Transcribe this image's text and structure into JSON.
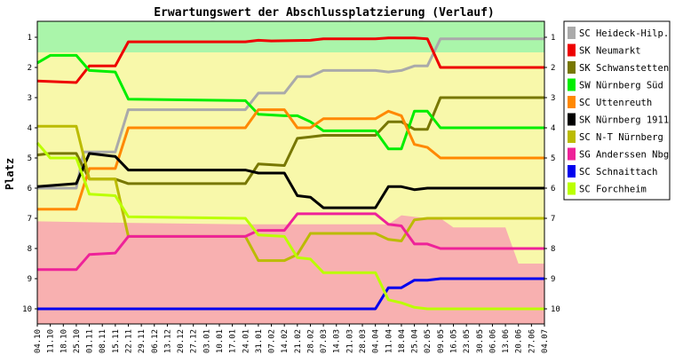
{
  "chart_data": {
    "type": "line",
    "title": "Erwartungswert der Abschlussplatzierung (Verlauf)",
    "ylabel": "Platz",
    "xlabel": "",
    "ylim": [
      1,
      10
    ],
    "y_inverted": true,
    "y_ticks": [
      1,
      2,
      3,
      4,
      5,
      6,
      7,
      8,
      9,
      10
    ],
    "x_tick_labels": [
      "04.10",
      "11.10",
      "18.10",
      "25.10",
      "01.11",
      "08.11",
      "15.11",
      "22.11",
      "29.11",
      "06.12",
      "13.12",
      "20.12",
      "27.12",
      "03.01",
      "10.01",
      "17.01",
      "24.01",
      "31.01",
      "07.02",
      "14.02",
      "21.02",
      "28.02",
      "07.03",
      "14.03",
      "21.03",
      "28.03",
      "04.04",
      "11.04",
      "18.04",
      "25.04",
      "02.05",
      "09.05",
      "16.05",
      "23.05",
      "30.05",
      "06.06",
      "13.06",
      "20.06",
      "27.06",
      "04.07"
    ],
    "x_start": "2009-10-04",
    "x_end": "2010-07-04",
    "grid": false,
    "legend_position": "right",
    "background_colors": {
      "top_zone": "#aaf5aa",
      "middle_zone": "#f8f8aa",
      "bottom_zone": "#f8b0b0"
    },
    "background_zones": {
      "x": [
        "2009-10-04",
        "2009-11-22",
        "2010-01-24",
        "2010-04-11",
        "2010-04-18",
        "2010-05-02",
        "2010-05-09",
        "2010-05-16",
        "2010-06-13",
        "2010-06-20",
        "2010-07-04"
      ],
      "top_zone_lower": [
        1.5,
        1.5,
        1.5,
        1.5,
        1.5,
        1.5,
        1.5,
        1.5,
        1.5,
        1.5,
        1.5
      ],
      "bottom_zone_upper": [
        7.1,
        7.15,
        7.2,
        7.2,
        6.9,
        7.0,
        7.0,
        7.3,
        7.3,
        8.5,
        8.5
      ]
    },
    "series": [
      {
        "name": "SC Heideck-Hilp.",
        "color": "#aaaaaa",
        "x": [
          "2009-10-04",
          "2009-10-25",
          "2009-10-29",
          "2009-11-15",
          "2009-11-22",
          "2010-01-24",
          "2010-01-31",
          "2010-02-14",
          "2010-02-21",
          "2010-02-28",
          "2010-03-07",
          "2010-04-04",
          "2010-04-11",
          "2010-04-18",
          "2010-04-25",
          "2010-05-02",
          "2010-05-09",
          "2010-07-04"
        ],
        "values": [
          6.0,
          6.0,
          4.8,
          4.8,
          3.4,
          3.4,
          2.85,
          2.85,
          2.3,
          2.3,
          2.1,
          2.1,
          2.15,
          2.1,
          1.95,
          1.95,
          1.05,
          1.05
        ]
      },
      {
        "name": "SK Neumarkt",
        "color": "#ee0000",
        "x": [
          "2009-10-04",
          "2009-10-25",
          "2009-11-01",
          "2009-11-15",
          "2009-11-22",
          "2010-01-24",
          "2010-01-31",
          "2010-02-07",
          "2010-02-28",
          "2010-03-07",
          "2010-04-04",
          "2010-04-11",
          "2010-04-25",
          "2010-05-02",
          "2010-05-09",
          "2010-07-04"
        ],
        "values": [
          2.45,
          2.5,
          1.95,
          1.95,
          1.15,
          1.15,
          1.1,
          1.12,
          1.1,
          1.05,
          1.05,
          1.02,
          1.02,
          1.05,
          2.0,
          2.0
        ]
      },
      {
        "name": "SK Schwanstetten",
        "color": "#777700",
        "x": [
          "2009-10-04",
          "2009-10-11",
          "2009-10-25",
          "2009-11-01",
          "2009-11-15",
          "2009-11-22",
          "2010-01-17",
          "2010-01-24",
          "2010-01-31",
          "2010-02-14",
          "2010-02-21",
          "2010-02-28",
          "2010-03-07",
          "2010-04-04",
          "2010-04-11",
          "2010-04-18",
          "2010-04-25",
          "2010-05-02",
          "2010-05-09",
          "2010-07-04"
        ],
        "values": [
          4.9,
          4.85,
          4.85,
          5.7,
          5.7,
          5.85,
          5.85,
          5.85,
          5.2,
          5.25,
          4.35,
          4.3,
          4.25,
          4.25,
          3.8,
          3.8,
          4.05,
          4.05,
          3.0,
          3.0
        ]
      },
      {
        "name": "SW Nürnberg Süd",
        "color": "#00ee00",
        "x": [
          "2009-10-04",
          "2009-10-11",
          "2009-10-25",
          "2009-11-01",
          "2009-11-15",
          "2009-11-22",
          "2010-01-24",
          "2010-01-31",
          "2010-02-14",
          "2010-02-21",
          "2010-02-28",
          "2010-03-07",
          "2010-04-04",
          "2010-04-11",
          "2010-04-18",
          "2010-04-25",
          "2010-05-02",
          "2010-05-09",
          "2010-07-04"
        ],
        "values": [
          1.85,
          1.6,
          1.6,
          2.1,
          2.15,
          3.05,
          3.1,
          3.55,
          3.6,
          3.6,
          3.8,
          4.1,
          4.1,
          4.7,
          4.7,
          3.45,
          3.45,
          4.0,
          4.0
        ]
      },
      {
        "name": "SC Uttenreuth",
        "color": "#ff8800",
        "x": [
          "2009-10-04",
          "2009-10-25",
          "2009-11-01",
          "2009-11-15",
          "2009-11-22",
          "2010-01-24",
          "2010-01-31",
          "2010-02-14",
          "2010-02-21",
          "2010-02-28",
          "2010-03-07",
          "2010-04-04",
          "2010-04-11",
          "2010-04-18",
          "2010-04-25",
          "2010-05-02",
          "2010-05-09",
          "2010-07-04"
        ],
        "values": [
          6.7,
          6.7,
          5.35,
          5.35,
          4.0,
          4.0,
          3.4,
          3.4,
          4.0,
          4.0,
          3.7,
          3.7,
          3.45,
          3.6,
          4.55,
          4.65,
          5.0,
          5.0
        ]
      },
      {
        "name": "SK Nürnberg 1911",
        "color": "#000000",
        "x": [
          "2009-10-04",
          "2009-10-25",
          "2009-11-01",
          "2009-11-15",
          "2009-11-22",
          "2010-01-24",
          "2010-01-31",
          "2010-02-14",
          "2010-02-21",
          "2010-02-28",
          "2010-03-07",
          "2010-04-04",
          "2010-04-11",
          "2010-04-18",
          "2010-04-25",
          "2010-05-02",
          "2010-07-04"
        ],
        "values": [
          5.95,
          5.85,
          4.85,
          4.95,
          5.4,
          5.4,
          5.5,
          5.5,
          6.25,
          6.3,
          6.65,
          6.65,
          5.95,
          5.95,
          6.05,
          6.0,
          6.0
        ]
      },
      {
        "name": "SC N-T Nürnberg",
        "color": "#bbbb00",
        "x": [
          "2009-10-04",
          "2009-10-25",
          "2009-11-01",
          "2009-11-15",
          "2009-11-22",
          "2010-01-24",
          "2010-01-31",
          "2010-02-14",
          "2010-02-21",
          "2010-02-28",
          "2010-04-04",
          "2010-04-11",
          "2010-04-18",
          "2010-04-25",
          "2010-05-02",
          "2010-07-04"
        ],
        "values": [
          3.95,
          3.95,
          5.7,
          5.7,
          7.6,
          7.6,
          8.4,
          8.4,
          8.2,
          7.5,
          7.5,
          7.7,
          7.75,
          7.05,
          7.0,
          7.0
        ]
      },
      {
        "name": "SG Anderssen Nbg",
        "color": "#ee2299",
        "x": [
          "2009-10-04",
          "2009-10-25",
          "2009-11-01",
          "2009-11-15",
          "2009-11-22",
          "2010-01-24",
          "2010-01-31",
          "2010-02-14",
          "2010-02-21",
          "2010-02-28",
          "2010-04-04",
          "2010-04-11",
          "2010-04-18",
          "2010-04-25",
          "2010-05-02",
          "2010-05-09",
          "2010-07-04"
        ],
        "values": [
          8.7,
          8.7,
          8.2,
          8.15,
          7.6,
          7.6,
          7.4,
          7.4,
          6.85,
          6.85,
          6.85,
          7.2,
          7.25,
          7.85,
          7.85,
          8.0,
          8.0
        ]
      },
      {
        "name": "SC Schnaittach",
        "color": "#0000ee",
        "x": [
          "2009-10-04",
          "2010-04-04",
          "2010-04-11",
          "2010-04-18",
          "2010-04-25",
          "2010-05-02",
          "2010-05-09",
          "2010-07-04"
        ],
        "values": [
          10.0,
          10.0,
          9.3,
          9.3,
          9.05,
          9.05,
          9.0,
          9.0
        ]
      },
      {
        "name": "SC Forchheim",
        "color": "#bbff00",
        "x": [
          "2009-10-04",
          "2009-10-11",
          "2009-10-25",
          "2009-11-01",
          "2009-11-15",
          "2009-11-22",
          "2010-01-24",
          "2010-01-31",
          "2010-02-14",
          "2010-02-21",
          "2010-02-28",
          "2010-03-07",
          "2010-04-04",
          "2010-04-11",
          "2010-04-18",
          "2010-04-25",
          "2010-05-02",
          "2010-07-04"
        ],
        "values": [
          4.5,
          5.0,
          5.0,
          6.2,
          6.25,
          6.95,
          7.0,
          7.55,
          7.6,
          8.3,
          8.35,
          8.8,
          8.8,
          9.7,
          9.8,
          9.95,
          10.0,
          10.0
        ]
      }
    ]
  }
}
